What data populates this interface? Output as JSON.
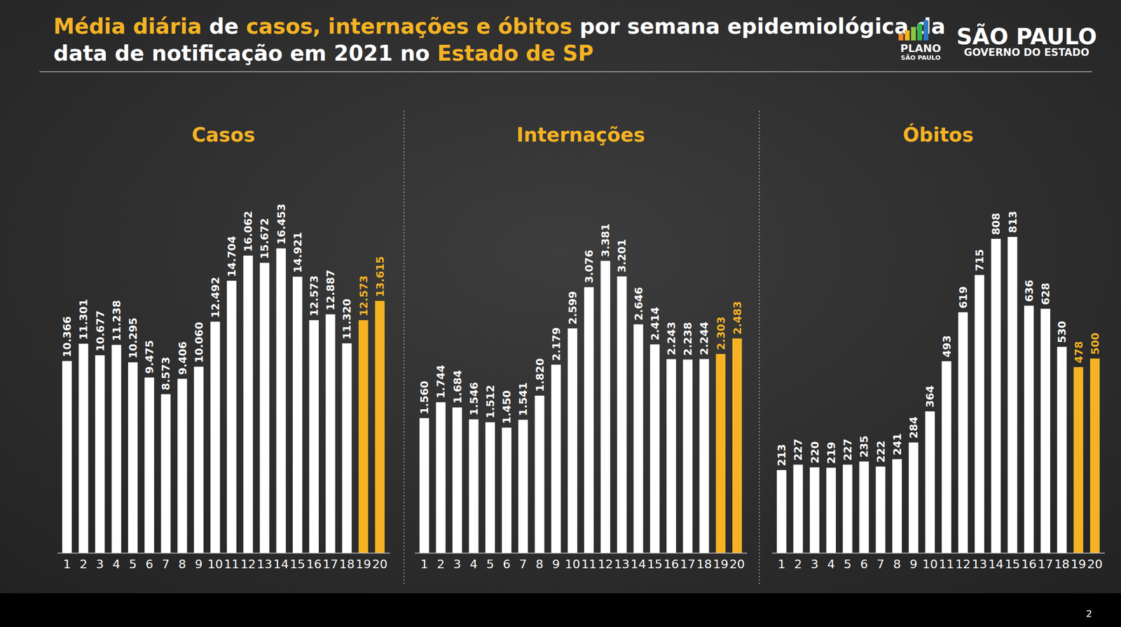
{
  "header": {
    "title": [
      [
        {
          "text": "Média diária",
          "color": "#f5b324"
        },
        {
          "text": " de ",
          "color": "#ffffff"
        },
        {
          "text": "casos, internações e óbitos",
          "color": "#f5b324"
        },
        {
          "text": " por semana epidemiológica da",
          "color": "#ffffff"
        }
      ],
      [
        {
          "text": "data de notificação em 2021 no ",
          "color": "#ffffff"
        },
        {
          "text": "Estado de SP",
          "color": "#f5b324"
        }
      ]
    ],
    "logos": [
      "PLANO",
      "SÃO PAULO",
      "SÃO PAULO",
      "GOVERNO DO ESTADO"
    ],
    "page": "2"
  },
  "chart_data": [
    {
      "type": "bar",
      "title": "Casos",
      "categories": [
        "1",
        "2",
        "3",
        "4",
        "5",
        "6",
        "7",
        "8",
        "9",
        "10",
        "11",
        "12",
        "13",
        "14",
        "15",
        "16",
        "17",
        "18",
        "19",
        "20"
      ],
      "values": [
        10366,
        11301,
        10677,
        11238,
        10295,
        9475,
        8573,
        9406,
        10060,
        12492,
        14704,
        16062,
        15672,
        16453,
        14921,
        12573,
        12887,
        11320,
        12573,
        13615
      ],
      "value_labels": [
        "10.366",
        "11.301",
        "10.677",
        "11.238",
        "10.295",
        "9.475",
        "8.573",
        "9.406",
        "10.060",
        "12.492",
        "14.704",
        "16.062",
        "15.672",
        "16.453",
        "14.921",
        "12.573",
        "12.887",
        "11.320",
        "12.573",
        "13.615"
      ],
      "colors": [
        "#ffffff",
        "#ffffff",
        "#ffffff",
        "#ffffff",
        "#ffffff",
        "#ffffff",
        "#ffffff",
        "#ffffff",
        "#ffffff",
        "#ffffff",
        "#ffffff",
        "#ffffff",
        "#ffffff",
        "#ffffff",
        "#ffffff",
        "#ffffff",
        "#ffffff",
        "#ffffff",
        "#f5b324",
        "#f5b324"
      ],
      "ylim": [
        0,
        21000
      ],
      "data_labels": true,
      "grid": false,
      "tick_labels": "x"
    },
    {
      "type": "bar",
      "title": "Internações",
      "categories": [
        "1",
        "2",
        "3",
        "4",
        "5",
        "6",
        "7",
        "8",
        "9",
        "10",
        "11",
        "12",
        "13",
        "14",
        "15",
        "16",
        "17",
        "18",
        "19",
        "20"
      ],
      "values": [
        1560,
        1744,
        1684,
        1546,
        1512,
        1450,
        1541,
        1820,
        2179,
        2599,
        3076,
        3381,
        3201,
        2646,
        2414,
        2243,
        2238,
        2244,
        2303,
        2483
      ],
      "value_labels": [
        "1.560",
        "1.744",
        "1.684",
        "1.546",
        "1.512",
        "1.450",
        "1.541",
        "1.820",
        "2.179",
        "2.599",
        "3.076",
        "3.381",
        "3.201",
        "2.646",
        "2.414",
        "2.243",
        "2.238",
        "2.244",
        "2.303",
        "2.483"
      ],
      "colors": [
        "#ffffff",
        "#ffffff",
        "#ffffff",
        "#ffffff",
        "#ffffff",
        "#ffffff",
        "#ffffff",
        "#ffffff",
        "#ffffff",
        "#ffffff",
        "#ffffff",
        "#ffffff",
        "#ffffff",
        "#ffffff",
        "#ffffff",
        "#ffffff",
        "#ffffff",
        "#ffffff",
        "#f5b324",
        "#f5b324"
      ],
      "ylim": [
        0,
        4500
      ],
      "data_labels": true,
      "grid": false,
      "tick_labels": "x"
    },
    {
      "type": "bar",
      "title": "Óbitos",
      "categories": [
        "1",
        "2",
        "3",
        "4",
        "5",
        "6",
        "7",
        "8",
        "9",
        "10",
        "11",
        "12",
        "13",
        "14",
        "15",
        "16",
        "17",
        "18",
        "19",
        "20"
      ],
      "values": [
        213,
        227,
        220,
        219,
        227,
        235,
        222,
        241,
        284,
        364,
        493,
        619,
        715,
        808,
        813,
        636,
        628,
        530,
        478,
        500
      ],
      "colors": [
        "#ffffff",
        "#ffffff",
        "#ffffff",
        "#ffffff",
        "#ffffff",
        "#ffffff",
        "#ffffff",
        "#ffffff",
        "#ffffff",
        "#ffffff",
        "#ffffff",
        "#ffffff",
        "#ffffff",
        "#ffffff",
        "#ffffff",
        "#ffffff",
        "#ffffff",
        "#ffffff",
        "#f5b324",
        "#f5b324"
      ],
      "ylim": [
        0,
        1000
      ],
      "data_labels": true,
      "grid": false,
      "tick_labels": "x"
    }
  ]
}
